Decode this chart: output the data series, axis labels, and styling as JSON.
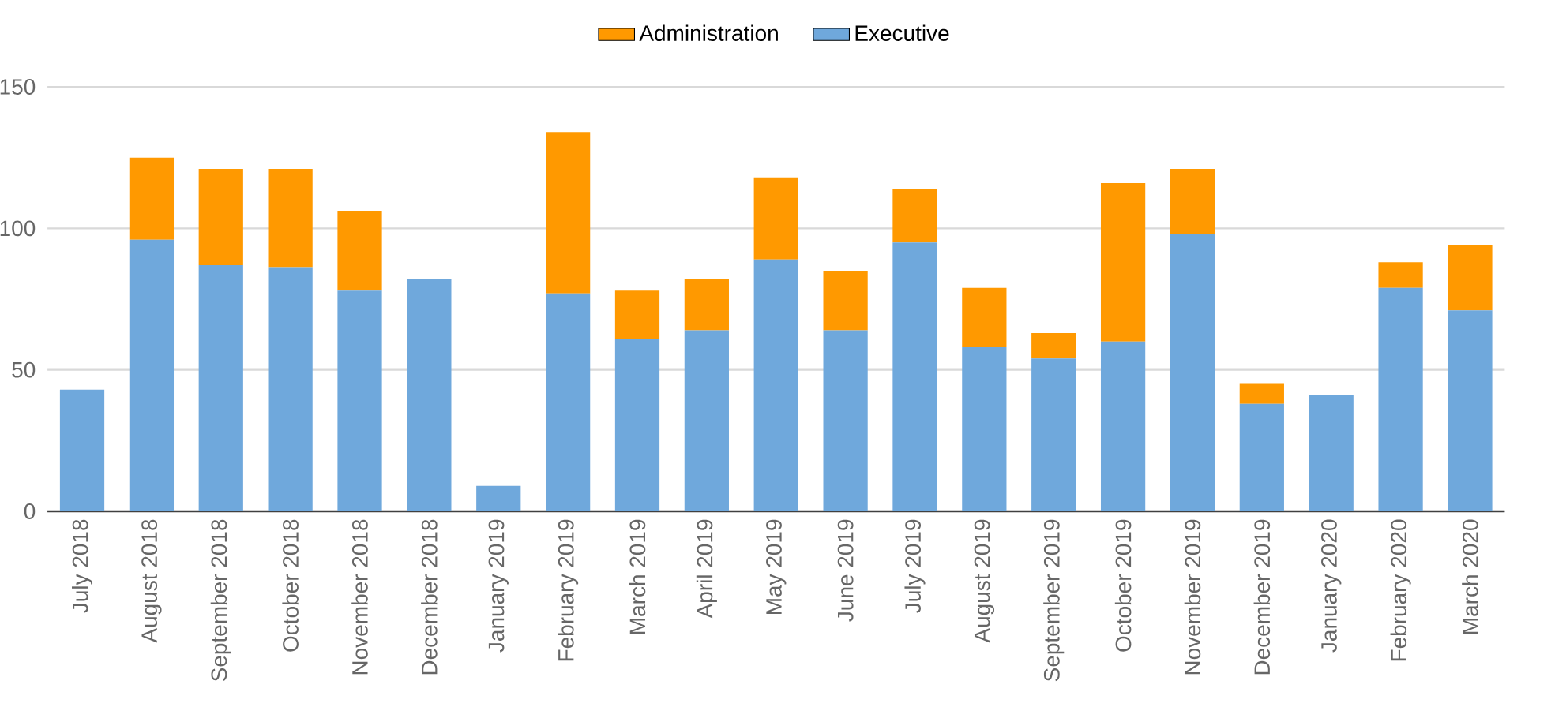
{
  "chart_data": {
    "type": "bar",
    "stacked": true,
    "categories": [
      "July 2018",
      "August 2018",
      "September 2018",
      "October 2018",
      "November 2018",
      "December 2018",
      "January 2019",
      "February 2019",
      "March 2019",
      "April 2019",
      "May 2019",
      "June 2019",
      "July 2019",
      "August 2019",
      "September 2019",
      "October 2019",
      "November 2019",
      "December 2019",
      "January 2020",
      "February 2020",
      "March 2020"
    ],
    "series": [
      {
        "name": "Executive",
        "color": "#6fa8dc",
        "values": [
          43,
          96,
          87,
          86,
          78,
          82,
          9,
          77,
          61,
          64,
          89,
          64,
          95,
          58,
          54,
          60,
          98,
          38,
          41,
          79,
          71
        ]
      },
      {
        "name": "Administration",
        "color": "#ff9900",
        "values": [
          null,
          29,
          34,
          35,
          28,
          null,
          null,
          57,
          17,
          18,
          29,
          21,
          19,
          21,
          9,
          56,
          23,
          7,
          null,
          9,
          23
        ]
      }
    ],
    "ylim": [
      0,
      150
    ],
    "yticks": [
      0,
      50,
      100,
      150
    ],
    "grid": "y",
    "legend": "top"
  }
}
